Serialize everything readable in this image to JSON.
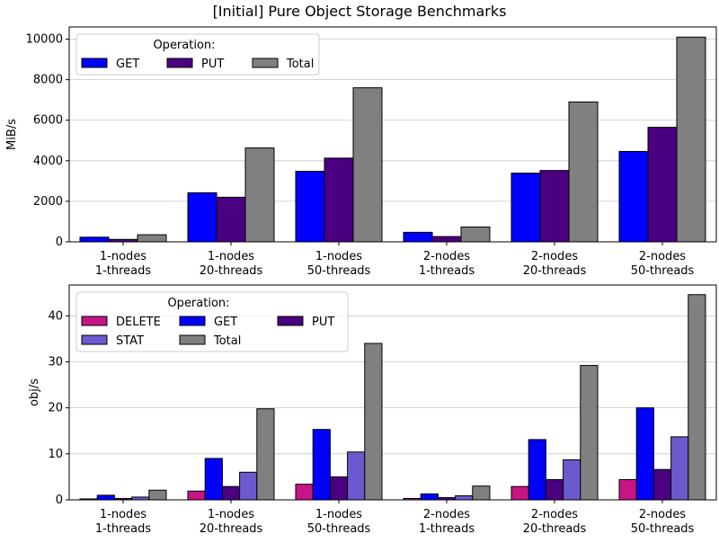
{
  "figure": {
    "title": "[Initial] Pure Object Storage Benchmarks"
  },
  "chart_data": [
    {
      "type": "bar",
      "title": "",
      "xlabel": "",
      "ylabel": "MiB/s",
      "ylim": [
        0,
        10600
      ],
      "yticks": [
        0,
        2000,
        4000,
        6000,
        8000,
        10000
      ],
      "grid": "y",
      "legend_title": "Operation:",
      "legend_position": "top-left",
      "legend_columns": 3,
      "categories": [
        [
          "1-nodes",
          "1-threads"
        ],
        [
          "1-nodes",
          "20-threads"
        ],
        [
          "1-nodes",
          "50-threads"
        ],
        [
          "2-nodes",
          "1-threads"
        ],
        [
          "2-nodes",
          "20-threads"
        ],
        [
          "2-nodes",
          "50-threads"
        ]
      ],
      "series": [
        {
          "name": "GET",
          "color": "#0000ff",
          "values": [
            230,
            2420,
            3480,
            470,
            3390,
            4460
          ]
        },
        {
          "name": "PUT",
          "color": "#4b0082",
          "values": [
            120,
            2200,
            4130,
            260,
            3520,
            5650
          ]
        },
        {
          "name": "Total",
          "color": "#808080",
          "values": [
            350,
            4630,
            7600,
            730,
            6900,
            10100
          ]
        }
      ]
    },
    {
      "type": "bar",
      "title": "",
      "xlabel": "",
      "ylabel": "obj/s",
      "ylim": [
        0,
        46.7
      ],
      "yticks": [
        0,
        10,
        20,
        30,
        40
      ],
      "grid": "y",
      "legend_title": "Operation:",
      "legend_position": "top-left",
      "legend_columns": 3,
      "categories": [
        [
          "1-nodes",
          "1-threads"
        ],
        [
          "1-nodes",
          "20-threads"
        ],
        [
          "1-nodes",
          "50-threads"
        ],
        [
          "2-nodes",
          "1-threads"
        ],
        [
          "2-nodes",
          "20-threads"
        ],
        [
          "2-nodes",
          "50-threads"
        ]
      ],
      "series": [
        {
          "name": "DELETE",
          "color": "#c71585",
          "values": [
            0.2,
            1.9,
            3.4,
            0.3,
            2.9,
            4.4
          ]
        },
        {
          "name": "GET",
          "color": "#0000ff",
          "values": [
            1.0,
            9.0,
            15.3,
            1.3,
            13.1,
            20.0
          ]
        },
        {
          "name": "PUT",
          "color": "#4b0082",
          "values": [
            0.3,
            2.9,
            5.0,
            0.5,
            4.4,
            6.6
          ]
        },
        {
          "name": "STAT",
          "color": "#6a5acd",
          "values": [
            0.6,
            6.0,
            10.4,
            0.9,
            8.7,
            13.7
          ]
        },
        {
          "name": "Total",
          "color": "#808080",
          "values": [
            2.1,
            19.8,
            34.0,
            3.0,
            29.2,
            44.6
          ]
        }
      ]
    }
  ]
}
